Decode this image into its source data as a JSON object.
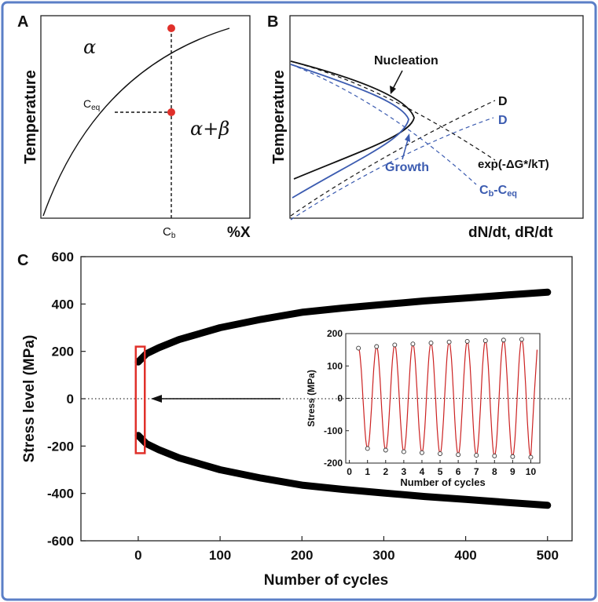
{
  "colors": {
    "frame": "#5b7fc7",
    "marker": "#e0302a",
    "blue": "#3b5bb0",
    "inset_line": "#cc2222"
  },
  "panel_a": {
    "letter": "A",
    "ylabel": "Temperature",
    "alpha": "α",
    "alpha_plus": "α",
    "plus": "+",
    "beta": "β",
    "ceq_main": "C",
    "ceq_sub": "eq",
    "cb_main": "C",
    "cb_sub": "b",
    "xlabel": "%X"
  },
  "panel_b": {
    "letter": "B",
    "ylabel": "Temperature",
    "nucleation": "Nucleation",
    "growth": "Growth",
    "d_black": "D",
    "d_blue": "D",
    "exp": "exp(-ΔG*/kT)",
    "cbceq_c1": "C",
    "cbceq_s1": "b",
    "cbceq_mid": "-C",
    "cbceq_s2": "eq",
    "xlabel": "dN/dt, dR/dt"
  },
  "chart_data": [
    {
      "type": "line",
      "panel": "C",
      "letter": "C",
      "xlabel": "Number of cycles",
      "ylabel": "Stress level (MPa)",
      "xlim": [
        -70,
        530
      ],
      "ylim": [
        -600,
        600
      ],
      "x_ticks": [
        "0",
        "100",
        "200",
        "300",
        "400",
        "500"
      ],
      "y_ticks": [
        "600",
        "400",
        "200",
        "0",
        "-200",
        "-400",
        "-600"
      ],
      "series": [
        {
          "role": "upper envelope",
          "x": [
            0,
            10,
            25,
            50,
            100,
            150,
            200,
            250,
            300,
            350,
            400,
            450,
            500
          ],
          "y": [
            155,
            190,
            215,
            250,
            300,
            335,
            365,
            383,
            398,
            413,
            425,
            438,
            450
          ]
        },
        {
          "role": "lower envelope",
          "x": [
            0,
            10,
            25,
            50,
            100,
            150,
            200,
            250,
            300,
            350,
            400,
            450,
            500
          ],
          "y": [
            -155,
            -190,
            -215,
            -250,
            -300,
            -335,
            -365,
            -383,
            -398,
            -413,
            -425,
            -438,
            -450
          ]
        }
      ],
      "highlight_box_x": [
        -3,
        8
      ],
      "highlight_box_y": [
        -230,
        220
      ],
      "zero_line": "dotted"
    },
    {
      "type": "line",
      "panel": "C-inset",
      "xlabel": "Number of cycles",
      "ylabel": "Stress (MPa)",
      "xlim": [
        -0.2,
        10.5
      ],
      "ylim": [
        -200,
        200
      ],
      "x_ticks": [
        "0",
        "1",
        "2",
        "3",
        "4",
        "5",
        "6",
        "7",
        "8",
        "9",
        "10"
      ],
      "y_ticks": [
        "200",
        "100",
        "0",
        "-100",
        "-200"
      ],
      "peaks_x": [
        0.5,
        1.5,
        2.5,
        3.5,
        4.5,
        5.5,
        6.5,
        7.5,
        8.5,
        9.5
      ],
      "peaks_y": [
        155,
        160,
        165,
        168,
        171,
        174,
        176,
        178,
        180,
        182
      ],
      "troughs_x": [
        1.0,
        2.0,
        3.0,
        4.0,
        5.0,
        6.0,
        7.0,
        8.0,
        9.0,
        10.0
      ],
      "troughs_y": [
        -155,
        -160,
        -165,
        -168,
        -171,
        -174,
        -176,
        -178,
        -180,
        -182
      ]
    }
  ]
}
